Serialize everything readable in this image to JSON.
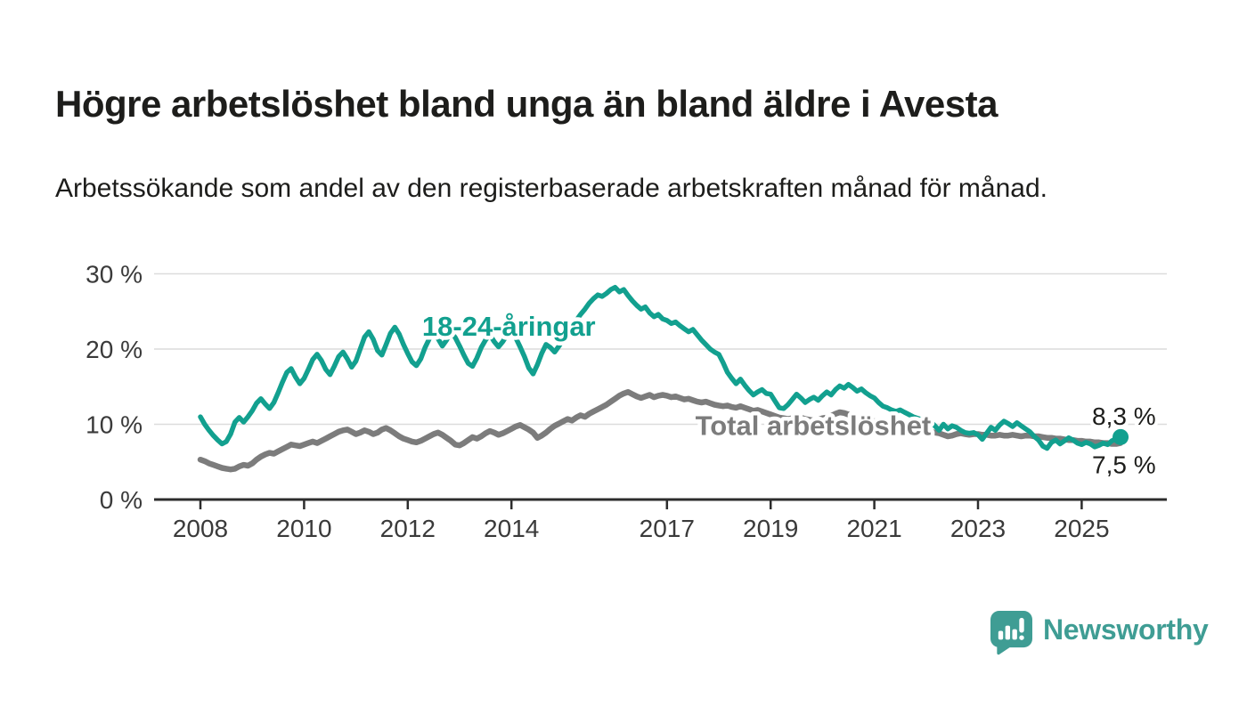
{
  "header": {
    "title": "Högre arbetslöshet bland unga än bland äldre i Avesta",
    "subtitle": "Arbetssökande som andel av den registerbaserade arbetskraften månad för månad."
  },
  "chart_data": {
    "type": "line",
    "title": "Högre arbetslöshet bland unga än bland äldre i Avesta",
    "x_unit": "monthly",
    "x_start": "2008-01",
    "x_end": "2025-10",
    "x_start_year": 2008,
    "ylim": [
      0,
      32
    ],
    "grid": "horizontal",
    "yticks": [
      {
        "value": 0,
        "label": "0 %"
      },
      {
        "value": 10,
        "label": "10 %"
      },
      {
        "value": 20,
        "label": "20 %"
      },
      {
        "value": 30,
        "label": "30 %"
      }
    ],
    "xticks": [
      {
        "year": 2008,
        "label": "2008"
      },
      {
        "year": 2010,
        "label": "2010"
      },
      {
        "year": 2012,
        "label": "2012"
      },
      {
        "year": 2014,
        "label": "2014"
      },
      {
        "year": 2017,
        "label": "2017"
      },
      {
        "year": 2019,
        "label": "2019"
      },
      {
        "year": 2021,
        "label": "2021"
      },
      {
        "year": 2023,
        "label": "2023"
      },
      {
        "year": 2025,
        "label": "2025"
      }
    ],
    "series": [
      {
        "name": "Total arbetslöshet",
        "color": "#7c7c7c",
        "label": {
          "year": 2019.82,
          "value": 9.9
        },
        "end_label": "7,5 %",
        "end_value": 7.5,
        "values": [
          5.3,
          5.1,
          4.8,
          4.6,
          4.4,
          4.2,
          4.1,
          4.0,
          4.1,
          4.4,
          4.6,
          4.5,
          4.8,
          5.3,
          5.7,
          6.0,
          6.2,
          6.1,
          6.4,
          6.7,
          7.0,
          7.3,
          7.2,
          7.1,
          7.3,
          7.5,
          7.7,
          7.5,
          7.8,
          8.1,
          8.4,
          8.7,
          9.0,
          9.2,
          9.3,
          9.0,
          8.7,
          8.9,
          9.2,
          9.0,
          8.7,
          8.9,
          9.3,
          9.5,
          9.2,
          8.8,
          8.4,
          8.1,
          7.9,
          7.7,
          7.6,
          7.8,
          8.1,
          8.4,
          8.7,
          8.9,
          8.6,
          8.2,
          7.8,
          7.3,
          7.2,
          7.5,
          7.9,
          8.3,
          8.1,
          8.4,
          8.8,
          9.1,
          8.9,
          8.6,
          8.8,
          9.1,
          9.4,
          9.7,
          9.9,
          9.6,
          9.3,
          8.9,
          8.2,
          8.5,
          8.9,
          9.4,
          9.8,
          10.1,
          10.4,
          10.7,
          10.5,
          10.9,
          11.2,
          11.0,
          11.4,
          11.7,
          12.0,
          12.3,
          12.6,
          13.0,
          13.4,
          13.8,
          14.1,
          14.3,
          14.0,
          13.7,
          13.5,
          13.7,
          13.9,
          13.6,
          13.8,
          13.9,
          13.8,
          13.6,
          13.7,
          13.5,
          13.3,
          13.4,
          13.2,
          13.0,
          12.9,
          13.0,
          12.8,
          12.6,
          12.5,
          12.4,
          12.5,
          12.3,
          12.2,
          12.4,
          12.2,
          12.0,
          11.8,
          11.9,
          11.7,
          11.5,
          11.3,
          11.1,
          10.9,
          10.8,
          10.7,
          10.8,
          11.0,
          10.9,
          10.7,
          10.6,
          10.5,
          10.6,
          10.8,
          10.9,
          11.1,
          11.4,
          11.6,
          11.5,
          11.3,
          11.2,
          11.0,
          10.9,
          10.7,
          10.6,
          10.4,
          10.2,
          10.0,
          9.8,
          9.7,
          9.6,
          9.5,
          9.4,
          9.3,
          9.2,
          9.1,
          9.0,
          9.1,
          9.0,
          8.9,
          8.8,
          8.6,
          8.4,
          8.5,
          8.7,
          8.8,
          8.7,
          8.6,
          8.7,
          8.7,
          8.6,
          8.6,
          8.5,
          8.5,
          8.6,
          8.5,
          8.5,
          8.6,
          8.5,
          8.4,
          8.5,
          8.5,
          8.4,
          8.4,
          8.3,
          8.2,
          8.2,
          8.1,
          8.1,
          8.0,
          7.9,
          7.9,
          7.8,
          7.8,
          7.7,
          7.7,
          7.6,
          7.6,
          7.5,
          7.5,
          7.4,
          7.4,
          7.5
        ]
      },
      {
        "name": "18-24-åringar",
        "color": "#12a08f",
        "label": {
          "year": 2013.95,
          "value": 23.1
        },
        "end_label": "8,3 %",
        "end_value": 8.3,
        "values": [
          11.0,
          10.0,
          9.2,
          8.5,
          7.9,
          7.4,
          7.7,
          8.7,
          10.3,
          10.9,
          10.3,
          11.0,
          11.8,
          12.8,
          13.4,
          12.7,
          12.1,
          12.9,
          14.2,
          15.6,
          16.9,
          17.4,
          16.3,
          15.4,
          16.1,
          17.3,
          18.6,
          19.3,
          18.5,
          17.3,
          16.6,
          17.7,
          19.0,
          19.6,
          18.7,
          17.6,
          18.4,
          20.0,
          21.6,
          22.3,
          21.3,
          19.8,
          19.2,
          20.6,
          22.1,
          22.9,
          22.0,
          20.6,
          19.4,
          18.3,
          17.8,
          18.7,
          20.2,
          21.4,
          22.1,
          21.4,
          20.4,
          21.2,
          22.3,
          21.5,
          20.4,
          19.2,
          18.1,
          17.7,
          18.8,
          20.2,
          21.2,
          21.9,
          21.0,
          20.3,
          21.0,
          21.9,
          22.4,
          21.5,
          20.3,
          19.0,
          17.5,
          16.7,
          17.9,
          19.4,
          20.6,
          20.2,
          19.6,
          20.4,
          21.3,
          22.2,
          23.0,
          23.8,
          24.6,
          25.3,
          26.1,
          26.7,
          27.2,
          27.0,
          27.4,
          27.9,
          28.2,
          27.6,
          27.9,
          27.1,
          26.4,
          25.8,
          25.3,
          25.6,
          24.8,
          24.3,
          24.6,
          24.0,
          23.8,
          23.4,
          23.6,
          23.1,
          22.7,
          22.3,
          22.6,
          21.9,
          21.2,
          20.6,
          20.0,
          19.6,
          19.3,
          18.2,
          16.9,
          16.1,
          15.4,
          16.0,
          15.2,
          14.5,
          13.9,
          14.3,
          14.6,
          14.1,
          14.0,
          13.1,
          12.2,
          12.1,
          12.6,
          13.3,
          14.0,
          13.5,
          12.9,
          13.3,
          13.6,
          13.2,
          13.8,
          14.3,
          13.9,
          14.6,
          15.1,
          14.8,
          15.3,
          14.9,
          14.4,
          14.7,
          14.2,
          13.8,
          13.5,
          12.9,
          12.4,
          12.2,
          11.9,
          11.7,
          11.9,
          11.6,
          11.3,
          11.0,
          10.8,
          10.6,
          10.8,
          10.4,
          9.8,
          9.2,
          10.0,
          9.4,
          9.8,
          9.6,
          9.2,
          8.9,
          8.8,
          8.9,
          8.6,
          8.0,
          8.8,
          9.6,
          9.2,
          9.9,
          10.4,
          10.1,
          9.7,
          10.2,
          9.8,
          9.4,
          9.0,
          8.4,
          7.9,
          7.1,
          6.8,
          7.6,
          7.9,
          7.4,
          7.8,
          8.2,
          7.9,
          7.5,
          7.3,
          7.6,
          7.4,
          7.0,
          7.2,
          7.5,
          7.3,
          7.8,
          8.1,
          8.3
        ]
      }
    ]
  },
  "footer": {
    "brand": "Newsworthy",
    "brand_color": "#3f9d94"
  }
}
